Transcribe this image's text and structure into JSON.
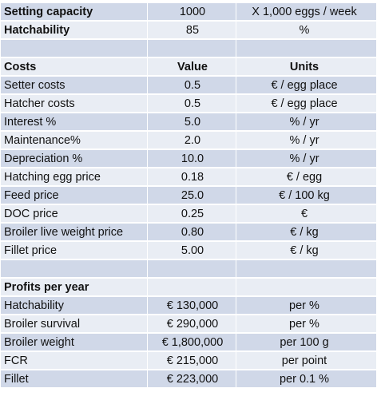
{
  "header": {
    "capacity": {
      "label": "Setting capacity",
      "value": "1000",
      "unit": "X 1,000 eggs / week"
    },
    "hatchability": {
      "label": "Hatchability",
      "value": "85",
      "unit": "%"
    }
  },
  "costs": {
    "title": "Costs",
    "value_header": "Value",
    "units_header": "Units",
    "rows": [
      {
        "label": "Setter costs",
        "value": "0.5",
        "unit": "€ / egg place"
      },
      {
        "label": "Hatcher costs",
        "value": "0.5",
        "unit": "€ / egg place"
      },
      {
        "label": "Interest %",
        "value": "5.0",
        "unit": "% / yr"
      },
      {
        "label": "Maintenance%",
        "value": "2.0",
        "unit": "% / yr"
      },
      {
        "label": "Depreciation %",
        "value": "10.0",
        "unit": "% / yr"
      },
      {
        "label": "Hatching egg price",
        "value": "0.18",
        "unit": "€ / egg"
      },
      {
        "label": "Feed price",
        "value": "25.0",
        "unit": "€ / 100 kg"
      },
      {
        "label": "DOC price",
        "value": "0.25",
        "unit": "€"
      },
      {
        "label": "Broiler live weight price",
        "value": "0.80",
        "unit": "€ / kg"
      },
      {
        "label": "Fillet price",
        "value": "5.00",
        "unit": "€ / kg"
      }
    ]
  },
  "profits": {
    "title": "Profits per year",
    "rows": [
      {
        "label": "Hatchability",
        "value": "€ 130,000",
        "unit": "per %"
      },
      {
        "label": "Broiler survival",
        "value": "€ 290,000",
        "unit": "per %"
      },
      {
        "label": "Broiler weight",
        "value": "€ 1,800,000",
        "unit": "per 100 g"
      },
      {
        "label": "FCR",
        "value": "€ 215,000",
        "unit": "per point"
      },
      {
        "label": "Fillet",
        "value": "€ 223,000",
        "unit": "per 0.1 %"
      }
    ]
  }
}
